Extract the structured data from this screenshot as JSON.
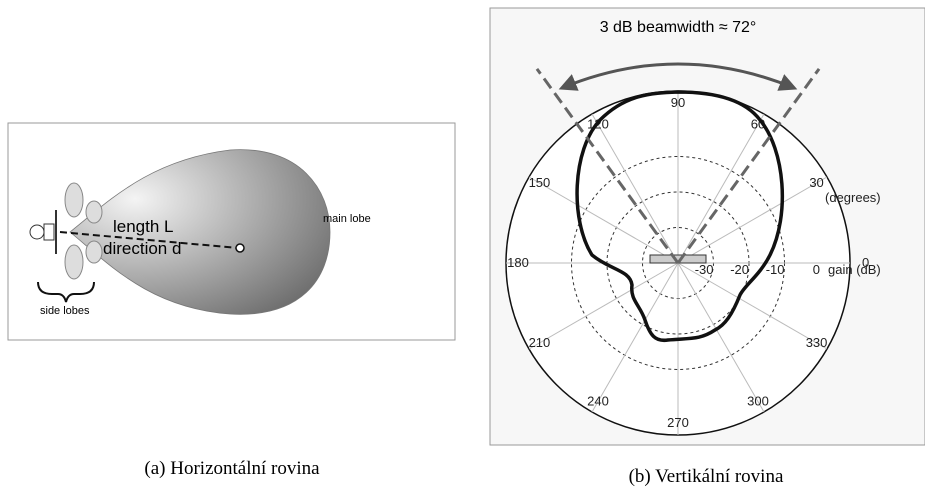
{
  "panels": [
    {
      "caption": "(a) Horizontální rovina",
      "labels": {
        "length": "length L",
        "direction": "direction d",
        "main_lobe": "main lobe",
        "side_lobes": "side lobes"
      }
    },
    {
      "caption": "(b) Vertikální rovina",
      "title": "3 dB beamwidth ≈ 72°",
      "angle_labels": [
        0,
        30,
        60,
        90,
        120,
        150,
        180,
        210,
        240,
        270,
        300,
        330
      ],
      "angle_unit": "(degrees)",
      "gain_labels": [
        -30,
        -20,
        -10,
        0
      ],
      "gain_unit": "gain (dB)"
    }
  ]
}
